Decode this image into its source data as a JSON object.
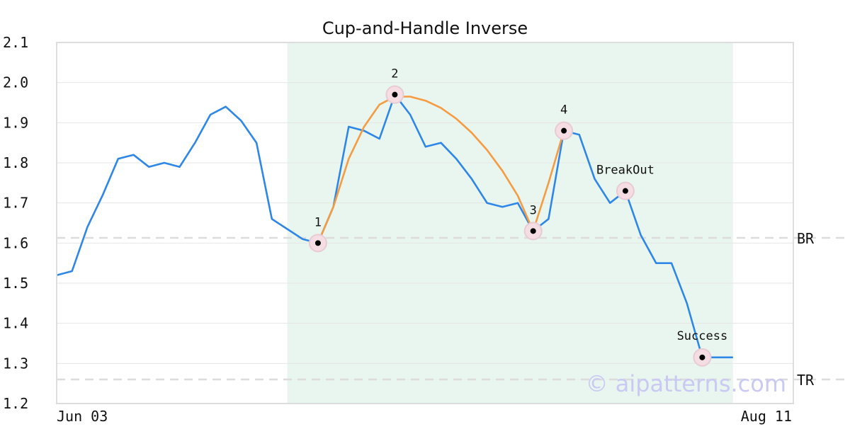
{
  "chart_data": {
    "type": "line",
    "title": "Cup-and-Handle Inverse",
    "ylim": [
      1.2,
      2.1
    ],
    "y_ticks": [
      "1.2",
      "1.3",
      "1.4",
      "1.5",
      "1.6",
      "1.7",
      "1.8",
      "1.9",
      "2.0",
      "2.1"
    ],
    "x_tick_labels": [
      "Jun 03",
      "Aug 11"
    ],
    "grid": "horizontal",
    "price_series": {
      "color": "#2e86e6",
      "values": [
        1.52,
        1.53,
        1.64,
        1.72,
        1.81,
        1.82,
        1.79,
        1.8,
        1.79,
        1.85,
        1.92,
        1.94,
        1.905,
        1.85,
        1.66,
        1.635,
        1.61,
        1.6,
        1.69,
        1.89,
        1.88,
        1.86,
        1.97,
        1.92,
        1.84,
        1.85,
        1.81,
        1.76,
        1.7,
        1.69,
        1.7,
        1.63,
        1.66,
        1.88,
        1.87,
        1.76,
        1.7,
        1.73,
        1.62,
        1.55,
        1.55,
        1.45,
        1.315,
        1.315,
        1.315
      ]
    },
    "cup_curve": {
      "color": "#f59b42",
      "points": [
        {
          "i": 17,
          "v": 1.6
        },
        {
          "i": 18,
          "v": 1.69
        },
        {
          "i": 19,
          "v": 1.81
        },
        {
          "i": 20,
          "v": 1.89
        },
        {
          "i": 21,
          "v": 1.945
        },
        {
          "i": 22,
          "v": 1.965
        },
        {
          "i": 23,
          "v": 1.965
        },
        {
          "i": 24,
          "v": 1.955
        },
        {
          "i": 25,
          "v": 1.937
        },
        {
          "i": 26,
          "v": 1.91
        },
        {
          "i": 27,
          "v": 1.875
        },
        {
          "i": 28,
          "v": 1.832
        },
        {
          "i": 29,
          "v": 1.78
        },
        {
          "i": 30,
          "v": 1.718
        },
        {
          "i": 31,
          "v": 1.63
        },
        {
          "i": 32,
          "v": 1.75
        },
        {
          "i": 33,
          "v": 1.88
        }
      ]
    },
    "pattern_region": {
      "start_index": 15,
      "end_index": 44,
      "color": "#e9f5ef"
    },
    "levels": [
      {
        "label": "BR",
        "value": 1.613
      },
      {
        "label": "TR",
        "value": 1.26
      }
    ],
    "points": [
      {
        "label": "1",
        "index": 17,
        "value": 1.6
      },
      {
        "label": "2",
        "index": 22,
        "value": 1.97
      },
      {
        "label": "3",
        "index": 31,
        "value": 1.63
      },
      {
        "label": "4",
        "index": 33,
        "value": 1.88
      },
      {
        "label": "BreakOut",
        "index": 37,
        "value": 1.73
      },
      {
        "label": "Success",
        "index": 42,
        "value": 1.315
      }
    ]
  },
  "watermark": "© aipatterns.com"
}
